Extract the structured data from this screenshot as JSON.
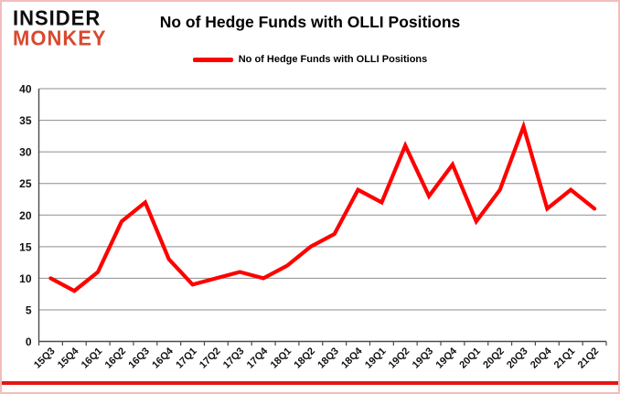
{
  "header": {
    "logo_line1": "INSIDER",
    "logo_line2": "MONKEY",
    "title": "No of Hedge Funds with OLLI Positions"
  },
  "legend": {
    "label": "No of Hedge Funds with OLLI Positions",
    "color": "#ff0000"
  },
  "colors": {
    "line": "#ff0000",
    "logo_red": "#d8492f",
    "grid": "#8e8e8e",
    "axis": "#4a4a4a",
    "bottom_stripe": "#e51515",
    "page_border": "#f2bdbd"
  },
  "chart_data": {
    "type": "line",
    "title": "No of Hedge Funds with OLLI Positions",
    "legend_entries": [
      "No of Hedge Funds with OLLI Positions"
    ],
    "legend_position": "top",
    "grid": true,
    "xlabel": "",
    "ylabel": "",
    "ylim": [
      0,
      40
    ],
    "ytick_interval": 5,
    "categories": [
      "15Q3",
      "15Q4",
      "16Q1",
      "16Q2",
      "16Q3",
      "16Q4",
      "17Q1",
      "17Q2",
      "17Q3",
      "17Q4",
      "18Q1",
      "18Q2",
      "18Q3",
      "18Q4",
      "19Q1",
      "19Q2",
      "19Q3",
      "19Q4",
      "20Q1",
      "20Q2",
      "20Q3",
      "20Q4",
      "21Q1",
      "21Q2"
    ],
    "series": [
      {
        "name": "No of Hedge Funds with OLLI Positions",
        "color": "#ff0000",
        "values": [
          10,
          8,
          11,
          19,
          22,
          13,
          9,
          10,
          11,
          10,
          12,
          15,
          17,
          24,
          22,
          31,
          23,
          28,
          19,
          24,
          34,
          21,
          24,
          21
        ]
      }
    ]
  }
}
